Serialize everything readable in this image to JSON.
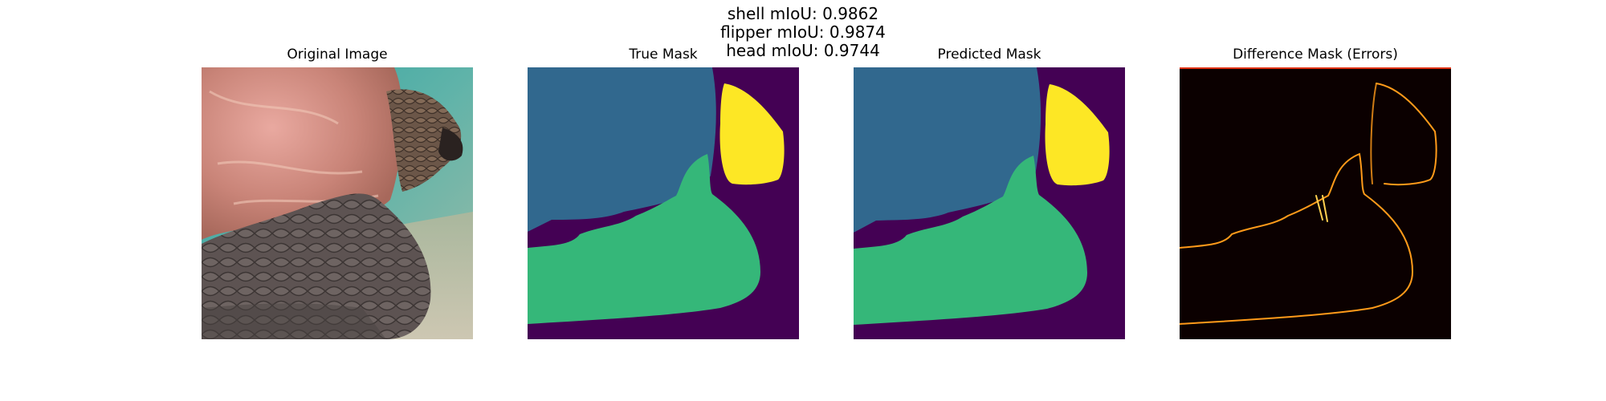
{
  "figure": {
    "metrics": [
      "shell mIoU: 0.9862",
      "flipper mIoU: 0.9874",
      "head mIoU: 0.9744"
    ],
    "panels": [
      {
        "title": "Original Image"
      },
      {
        "title": "True Mask"
      },
      {
        "title": "Predicted Mask"
      },
      {
        "title": "Difference Mask (Errors)"
      }
    ],
    "colors": {
      "background_class": "#440154",
      "shell_class": "#31688e",
      "flipper_class": "#35b779",
      "head_class": "#fde725",
      "error_bg": "#0b0000",
      "error_line": "#ff9a1a"
    }
  }
}
